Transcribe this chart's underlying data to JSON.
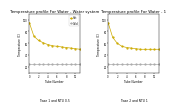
{
  "bg_color": "#ffffff",
  "page_title": "Temperature Profile For Water-Water System",
  "chart1": {
    "title": "Temperature profile For Water - Water system",
    "subtitle": "Tcase 1 and NTU 0.5",
    "xlabel": "Tube Number",
    "ylabel": "Temperature (C)",
    "hot": [
      95,
      72,
      65,
      61,
      58,
      56,
      55,
      54,
      53,
      52,
      51,
      50
    ],
    "cold": [
      25,
      25,
      25,
      25,
      25,
      25,
      25,
      25,
      25,
      25,
      25,
      25
    ],
    "hot_color": "#ccaa00",
    "cold_color": "#aaaaaa",
    "hot_label": "Hot",
    "cold_label": "Cold",
    "ylim": [
      10,
      110
    ],
    "xlim": [
      0,
      11
    ]
  },
  "chart2": {
    "title": "Temperature profile For Water - 1",
    "subtitle": "Tcase 2 and NTU 1",
    "xlabel": "Tube Number",
    "ylabel": "Temperature (C)",
    "hot": [
      95,
      70,
      60,
      55,
      53,
      52,
      51,
      50,
      50,
      50,
      50,
      50
    ],
    "cold": [
      25,
      25,
      25,
      25,
      25,
      25,
      25,
      25,
      25,
      25,
      25,
      25
    ],
    "hot_color": "#ccaa00",
    "cold_color": "#aaaaaa",
    "hot_label": "Hot",
    "cold_label": "Cold",
    "ylim": [
      10,
      110
    ],
    "xlim": [
      0,
      11
    ]
  },
  "title_fontsize": 2.8,
  "subtitle_fontsize": 2.2,
  "axis_fontsize": 2.0,
  "tick_fontsize": 1.8,
  "legend_fontsize": 1.8,
  "line_width": 0.5,
  "marker_size": 0.6
}
